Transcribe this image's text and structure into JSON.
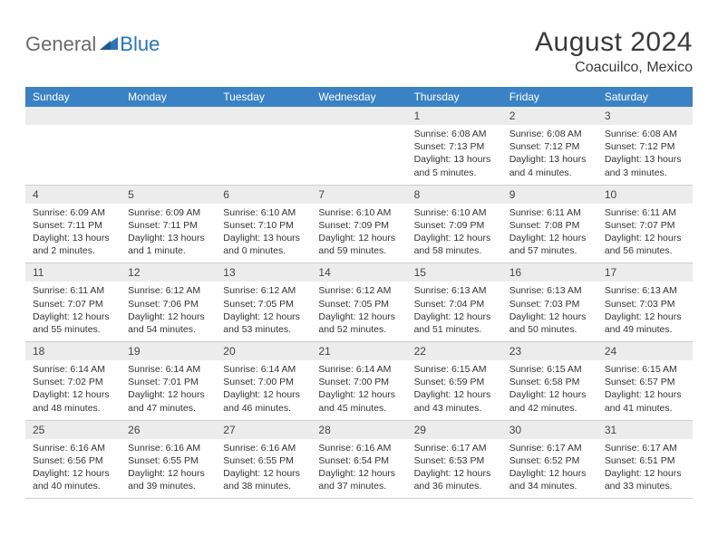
{
  "brand": {
    "part1": "General",
    "part2": "Blue"
  },
  "title": "August 2024",
  "subtitle": "Coacuilco, Mexico",
  "colors": {
    "header_bg": "#3a82c4",
    "header_text": "#ffffff",
    "daynum_bg": "#ececec",
    "border": "#cfcfcf",
    "brand_blue": "#2b74b8",
    "brand_gray": "#6a6a6a"
  },
  "day_headers": [
    "Sunday",
    "Monday",
    "Tuesday",
    "Wednesday",
    "Thursday",
    "Friday",
    "Saturday"
  ],
  "weeks": [
    [
      {
        "blank": true
      },
      {
        "blank": true
      },
      {
        "blank": true
      },
      {
        "blank": true
      },
      {
        "day": "1",
        "sunrise": "Sunrise: 6:08 AM",
        "sunset": "Sunset: 7:13 PM",
        "daylight": "Daylight: 13 hours and 5 minutes."
      },
      {
        "day": "2",
        "sunrise": "Sunrise: 6:08 AM",
        "sunset": "Sunset: 7:12 PM",
        "daylight": "Daylight: 13 hours and 4 minutes."
      },
      {
        "day": "3",
        "sunrise": "Sunrise: 6:08 AM",
        "sunset": "Sunset: 7:12 PM",
        "daylight": "Daylight: 13 hours and 3 minutes."
      }
    ],
    [
      {
        "day": "4",
        "sunrise": "Sunrise: 6:09 AM",
        "sunset": "Sunset: 7:11 PM",
        "daylight": "Daylight: 13 hours and 2 minutes."
      },
      {
        "day": "5",
        "sunrise": "Sunrise: 6:09 AM",
        "sunset": "Sunset: 7:11 PM",
        "daylight": "Daylight: 13 hours and 1 minute."
      },
      {
        "day": "6",
        "sunrise": "Sunrise: 6:10 AM",
        "sunset": "Sunset: 7:10 PM",
        "daylight": "Daylight: 13 hours and 0 minutes."
      },
      {
        "day": "7",
        "sunrise": "Sunrise: 6:10 AM",
        "sunset": "Sunset: 7:09 PM",
        "daylight": "Daylight: 12 hours and 59 minutes."
      },
      {
        "day": "8",
        "sunrise": "Sunrise: 6:10 AM",
        "sunset": "Sunset: 7:09 PM",
        "daylight": "Daylight: 12 hours and 58 minutes."
      },
      {
        "day": "9",
        "sunrise": "Sunrise: 6:11 AM",
        "sunset": "Sunset: 7:08 PM",
        "daylight": "Daylight: 12 hours and 57 minutes."
      },
      {
        "day": "10",
        "sunrise": "Sunrise: 6:11 AM",
        "sunset": "Sunset: 7:07 PM",
        "daylight": "Daylight: 12 hours and 56 minutes."
      }
    ],
    [
      {
        "day": "11",
        "sunrise": "Sunrise: 6:11 AM",
        "sunset": "Sunset: 7:07 PM",
        "daylight": "Daylight: 12 hours and 55 minutes."
      },
      {
        "day": "12",
        "sunrise": "Sunrise: 6:12 AM",
        "sunset": "Sunset: 7:06 PM",
        "daylight": "Daylight: 12 hours and 54 minutes."
      },
      {
        "day": "13",
        "sunrise": "Sunrise: 6:12 AM",
        "sunset": "Sunset: 7:05 PM",
        "daylight": "Daylight: 12 hours and 53 minutes."
      },
      {
        "day": "14",
        "sunrise": "Sunrise: 6:12 AM",
        "sunset": "Sunset: 7:05 PM",
        "daylight": "Daylight: 12 hours and 52 minutes."
      },
      {
        "day": "15",
        "sunrise": "Sunrise: 6:13 AM",
        "sunset": "Sunset: 7:04 PM",
        "daylight": "Daylight: 12 hours and 51 minutes."
      },
      {
        "day": "16",
        "sunrise": "Sunrise: 6:13 AM",
        "sunset": "Sunset: 7:03 PM",
        "daylight": "Daylight: 12 hours and 50 minutes."
      },
      {
        "day": "17",
        "sunrise": "Sunrise: 6:13 AM",
        "sunset": "Sunset: 7:03 PM",
        "daylight": "Daylight: 12 hours and 49 minutes."
      }
    ],
    [
      {
        "day": "18",
        "sunrise": "Sunrise: 6:14 AM",
        "sunset": "Sunset: 7:02 PM",
        "daylight": "Daylight: 12 hours and 48 minutes."
      },
      {
        "day": "19",
        "sunrise": "Sunrise: 6:14 AM",
        "sunset": "Sunset: 7:01 PM",
        "daylight": "Daylight: 12 hours and 47 minutes."
      },
      {
        "day": "20",
        "sunrise": "Sunrise: 6:14 AM",
        "sunset": "Sunset: 7:00 PM",
        "daylight": "Daylight: 12 hours and 46 minutes."
      },
      {
        "day": "21",
        "sunrise": "Sunrise: 6:14 AM",
        "sunset": "Sunset: 7:00 PM",
        "daylight": "Daylight: 12 hours and 45 minutes."
      },
      {
        "day": "22",
        "sunrise": "Sunrise: 6:15 AM",
        "sunset": "Sunset: 6:59 PM",
        "daylight": "Daylight: 12 hours and 43 minutes."
      },
      {
        "day": "23",
        "sunrise": "Sunrise: 6:15 AM",
        "sunset": "Sunset: 6:58 PM",
        "daylight": "Daylight: 12 hours and 42 minutes."
      },
      {
        "day": "24",
        "sunrise": "Sunrise: 6:15 AM",
        "sunset": "Sunset: 6:57 PM",
        "daylight": "Daylight: 12 hours and 41 minutes."
      }
    ],
    [
      {
        "day": "25",
        "sunrise": "Sunrise: 6:16 AM",
        "sunset": "Sunset: 6:56 PM",
        "daylight": "Daylight: 12 hours and 40 minutes."
      },
      {
        "day": "26",
        "sunrise": "Sunrise: 6:16 AM",
        "sunset": "Sunset: 6:55 PM",
        "daylight": "Daylight: 12 hours and 39 minutes."
      },
      {
        "day": "27",
        "sunrise": "Sunrise: 6:16 AM",
        "sunset": "Sunset: 6:55 PM",
        "daylight": "Daylight: 12 hours and 38 minutes."
      },
      {
        "day": "28",
        "sunrise": "Sunrise: 6:16 AM",
        "sunset": "Sunset: 6:54 PM",
        "daylight": "Daylight: 12 hours and 37 minutes."
      },
      {
        "day": "29",
        "sunrise": "Sunrise: 6:17 AM",
        "sunset": "Sunset: 6:53 PM",
        "daylight": "Daylight: 12 hours and 36 minutes."
      },
      {
        "day": "30",
        "sunrise": "Sunrise: 6:17 AM",
        "sunset": "Sunset: 6:52 PM",
        "daylight": "Daylight: 12 hours and 34 minutes."
      },
      {
        "day": "31",
        "sunrise": "Sunrise: 6:17 AM",
        "sunset": "Sunset: 6:51 PM",
        "daylight": "Daylight: 12 hours and 33 minutes."
      }
    ]
  ]
}
